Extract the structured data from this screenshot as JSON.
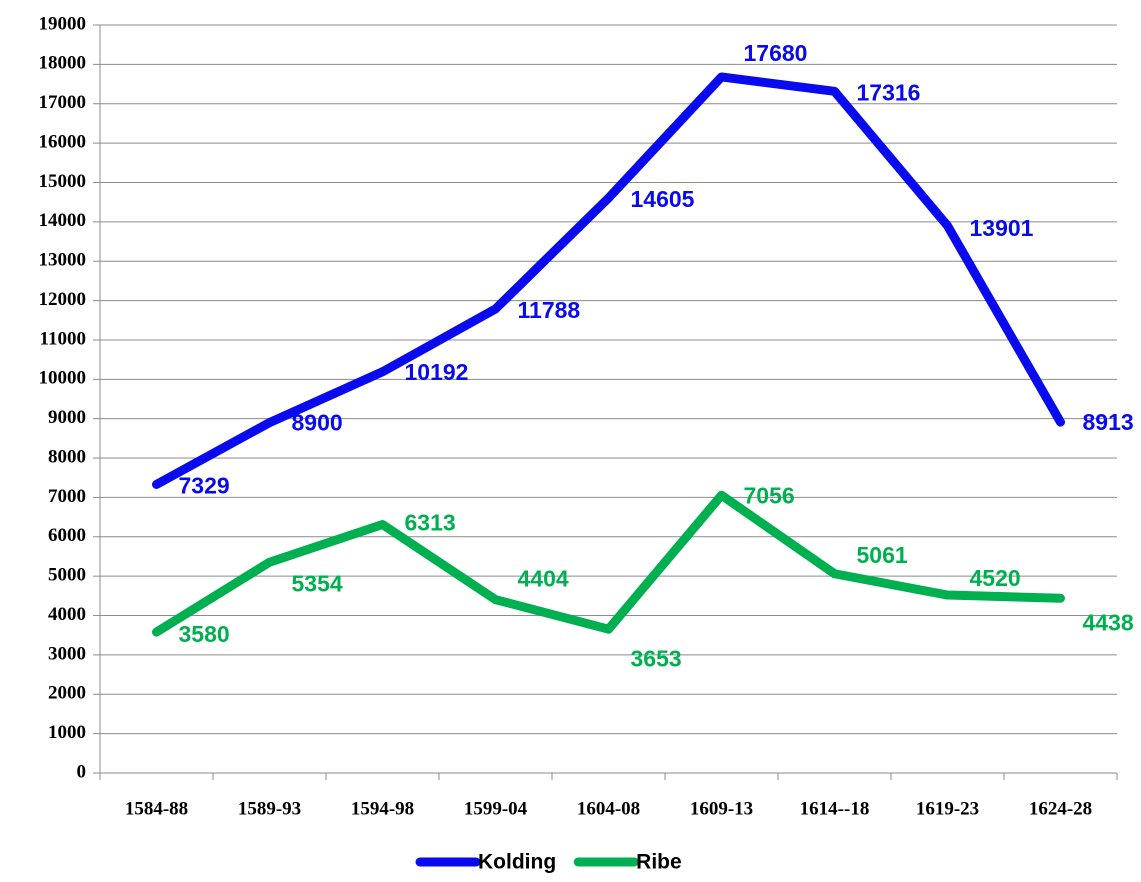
{
  "chart_data": {
    "type": "line",
    "categories": [
      "1584-88",
      "1589-93",
      "1594-98",
      "1599-04",
      "1604-08",
      "1609-13",
      "1614--18",
      "1619-23",
      "1624-28"
    ],
    "series": [
      {
        "name": "Kolding",
        "color": "#0a0aee",
        "values": [
          7329,
          8900,
          10192,
          11788,
          14605,
          17680,
          17316,
          13901,
          8913
        ]
      },
      {
        "name": "Ribe",
        "color": "#00b050",
        "values": [
          3580,
          5354,
          6313,
          4404,
          3653,
          7056,
          5061,
          4520,
          4438
        ]
      }
    ],
    "ylim": [
      0,
      19000
    ],
    "yticks": [
      0,
      1000,
      2000,
      3000,
      4000,
      5000,
      6000,
      7000,
      8000,
      9000,
      10000,
      11000,
      12000,
      13000,
      14000,
      15000,
      16000,
      17000,
      18000,
      19000
    ],
    "grid": true,
    "legend": "bottom"
  }
}
